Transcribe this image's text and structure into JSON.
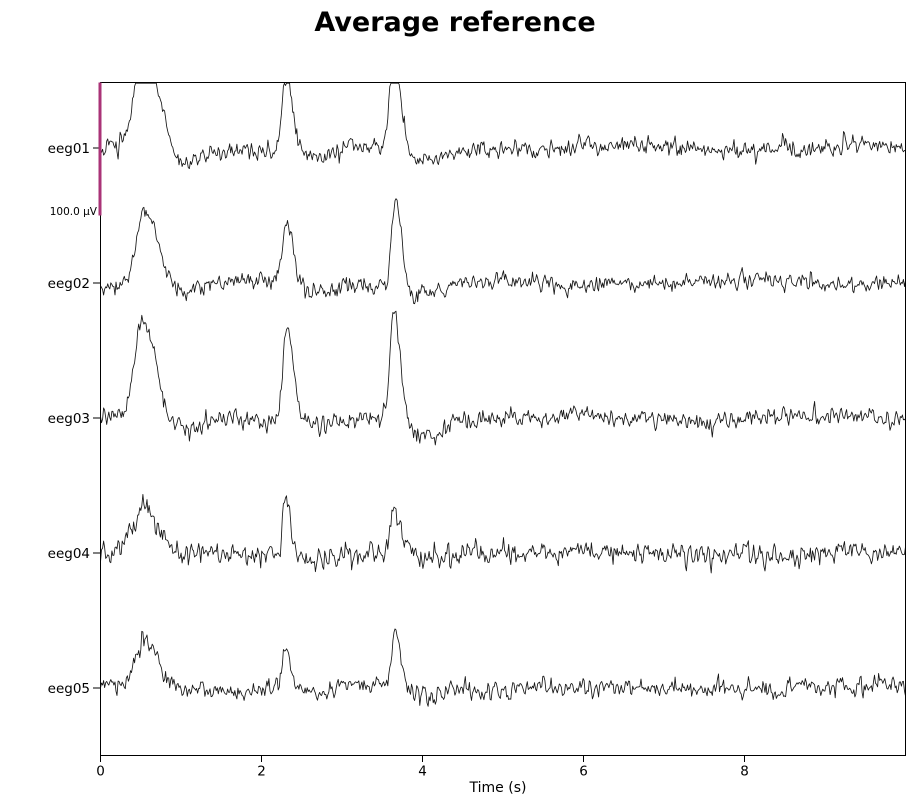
{
  "title": "Average reference",
  "chart_data": {
    "type": "line",
    "title": "Average reference",
    "xlabel": "Time (s)",
    "xlim": [
      0,
      10
    ],
    "xticks": [
      0,
      2,
      4,
      6,
      8
    ],
    "grid": false,
    "legend": null,
    "channels": [
      "eeg01",
      "eeg02",
      "eeg03",
      "eeg04",
      "eeg05"
    ],
    "line_color": "#161616",
    "scalebar": {
      "label": "100.0 µV",
      "value_uv": 100.0,
      "color": "#aa3377"
    },
    "event_times_s": [
      0.52,
      2.3,
      3.65
    ],
    "series": [
      {
        "name": "eeg01",
        "seed": 101,
        "noise_sigma_uv": 4.6,
        "wander_uv": 3.2,
        "peaks": [
          {
            "t": 0.5,
            "amp_uv": 62,
            "w": 0.09
          },
          {
            "t": 0.7,
            "amp_uv": 28,
            "w": 0.07
          },
          {
            "t": 2.3,
            "amp_uv": 56,
            "w": 0.05
          },
          {
            "t": 3.64,
            "amp_uv": 74,
            "w": 0.045
          }
        ]
      },
      {
        "name": "eeg02",
        "seed": 102,
        "noise_sigma_uv": 4.2,
        "wander_uv": 3.0,
        "peaks": [
          {
            "t": 0.54,
            "amp_uv": 58,
            "w": 0.095
          },
          {
            "t": 2.31,
            "amp_uv": 47,
            "w": 0.05
          },
          {
            "t": 3.66,
            "amp_uv": 66,
            "w": 0.042
          }
        ]
      },
      {
        "name": "eeg03",
        "seed": 103,
        "noise_sigma_uv": 4.4,
        "wander_uv": 3.0,
        "peaks": [
          {
            "t": 0.52,
            "amp_uv": 74,
            "w": 0.1
          },
          {
            "t": 2.31,
            "amp_uv": 66,
            "w": 0.048
          },
          {
            "t": 3.64,
            "amp_uv": 82,
            "w": 0.042
          }
        ]
      },
      {
        "name": "eeg04",
        "seed": 104,
        "noise_sigma_uv": 5.5,
        "wander_uv": 2.5,
        "peaks": [
          {
            "t": 0.53,
            "amp_uv": 34,
            "w": 0.12
          },
          {
            "t": 2.3,
            "amp_uv": 42,
            "w": 0.038
          },
          {
            "t": 3.65,
            "amp_uv": 32,
            "w": 0.045
          }
        ]
      },
      {
        "name": "eeg05",
        "seed": 105,
        "noise_sigma_uv": 4.5,
        "wander_uv": 3.0,
        "peaks": [
          {
            "t": 0.54,
            "amp_uv": 33,
            "w": 0.11
          },
          {
            "t": 2.3,
            "amp_uv": 29,
            "w": 0.045
          },
          {
            "t": 3.66,
            "amp_uv": 44,
            "w": 0.042
          }
        ]
      }
    ]
  }
}
